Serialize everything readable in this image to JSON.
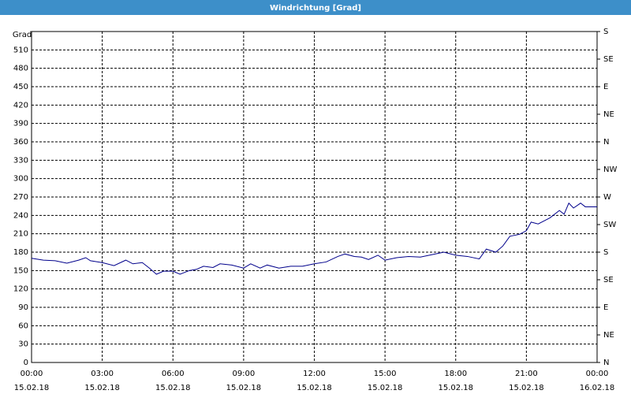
{
  "window_title": "Windrichtung [Grad]",
  "chart_data": {
    "type": "line",
    "y_label": "Grad",
    "xlim": [
      0,
      24
    ],
    "xticks": [
      {
        "value": 0,
        "label": "00:00\n15.02.18"
      },
      {
        "value": 3,
        "label": "03:00\n15.02.18"
      },
      {
        "value": 6,
        "label": "06:00\n15.02.18"
      },
      {
        "value": 9,
        "label": "09:00\n15.02.18"
      },
      {
        "value": 12,
        "label": "12:00\n15.02.18"
      },
      {
        "value": 15,
        "label": "15:00\n15.02.18"
      },
      {
        "value": 18,
        "label": "18:00\n15.02.18"
      },
      {
        "value": 21,
        "label": "21:00\n15.02.18"
      },
      {
        "value": 24,
        "label": "00:00\n16.02.18"
      }
    ],
    "ylim": [
      0,
      540
    ],
    "yticks": [
      0,
      30,
      60,
      90,
      120,
      150,
      180,
      210,
      240,
      270,
      300,
      330,
      360,
      390,
      420,
      450,
      480,
      510
    ],
    "y2lim": [
      0,
      540
    ],
    "y2ticks": [
      {
        "value": 0,
        "label": "N"
      },
      {
        "value": 45,
        "label": "NE"
      },
      {
        "value": 90,
        "label": "E"
      },
      {
        "value": 135,
        "label": "SE"
      },
      {
        "value": 180,
        "label": "S"
      },
      {
        "value": 225,
        "label": "SW"
      },
      {
        "value": 270,
        "label": "W"
      },
      {
        "value": 315,
        "label": "NW"
      },
      {
        "value": 360,
        "label": "N"
      },
      {
        "value": 405,
        "label": "NE"
      },
      {
        "value": 450,
        "label": "E"
      },
      {
        "value": 495,
        "label": "SE"
      },
      {
        "value": 540,
        "label": "S"
      }
    ],
    "grid": true,
    "x": [
      0,
      0.5,
      1,
      1.5,
      2,
      2.3,
      2.5,
      3,
      3.5,
      4,
      4.3,
      4.7,
      5,
      5.3,
      5.6,
      6,
      6.3,
      6.7,
      7,
      7.3,
      7.7,
      8,
      8.5,
      9,
      9.3,
      9.7,
      10,
      10.5,
      11,
      11.5,
      12,
      12.5,
      13,
      13.3,
      13.7,
      14,
      14.3,
      14.7,
      15,
      15.5,
      16,
      16.5,
      17,
      17.5,
      18,
      18.5,
      19,
      19.3,
      19.7,
      20,
      20.3,
      20.7,
      21,
      21.2,
      21.5,
      21.8,
      22,
      22.4,
      22.6,
      22.8,
      23,
      23.3,
      23.5,
      24
    ],
    "series": [
      {
        "color": "#00008b",
        "values": [
          170,
          167,
          166,
          162,
          167,
          171,
          166,
          163,
          158,
          167,
          161,
          163,
          154,
          144,
          149,
          149,
          144,
          150,
          152,
          157,
          155,
          161,
          159,
          154,
          161,
          154,
          159,
          154,
          157,
          157,
          161,
          164,
          173,
          177,
          173,
          172,
          168,
          175,
          167,
          171,
          173,
          172,
          176,
          180,
          175,
          173,
          169,
          185,
          180,
          190,
          206,
          209,
          215,
          229,
          226,
          232,
          236,
          248,
          242,
          260,
          252,
          260,
          254,
          254
        ]
      }
    ]
  }
}
